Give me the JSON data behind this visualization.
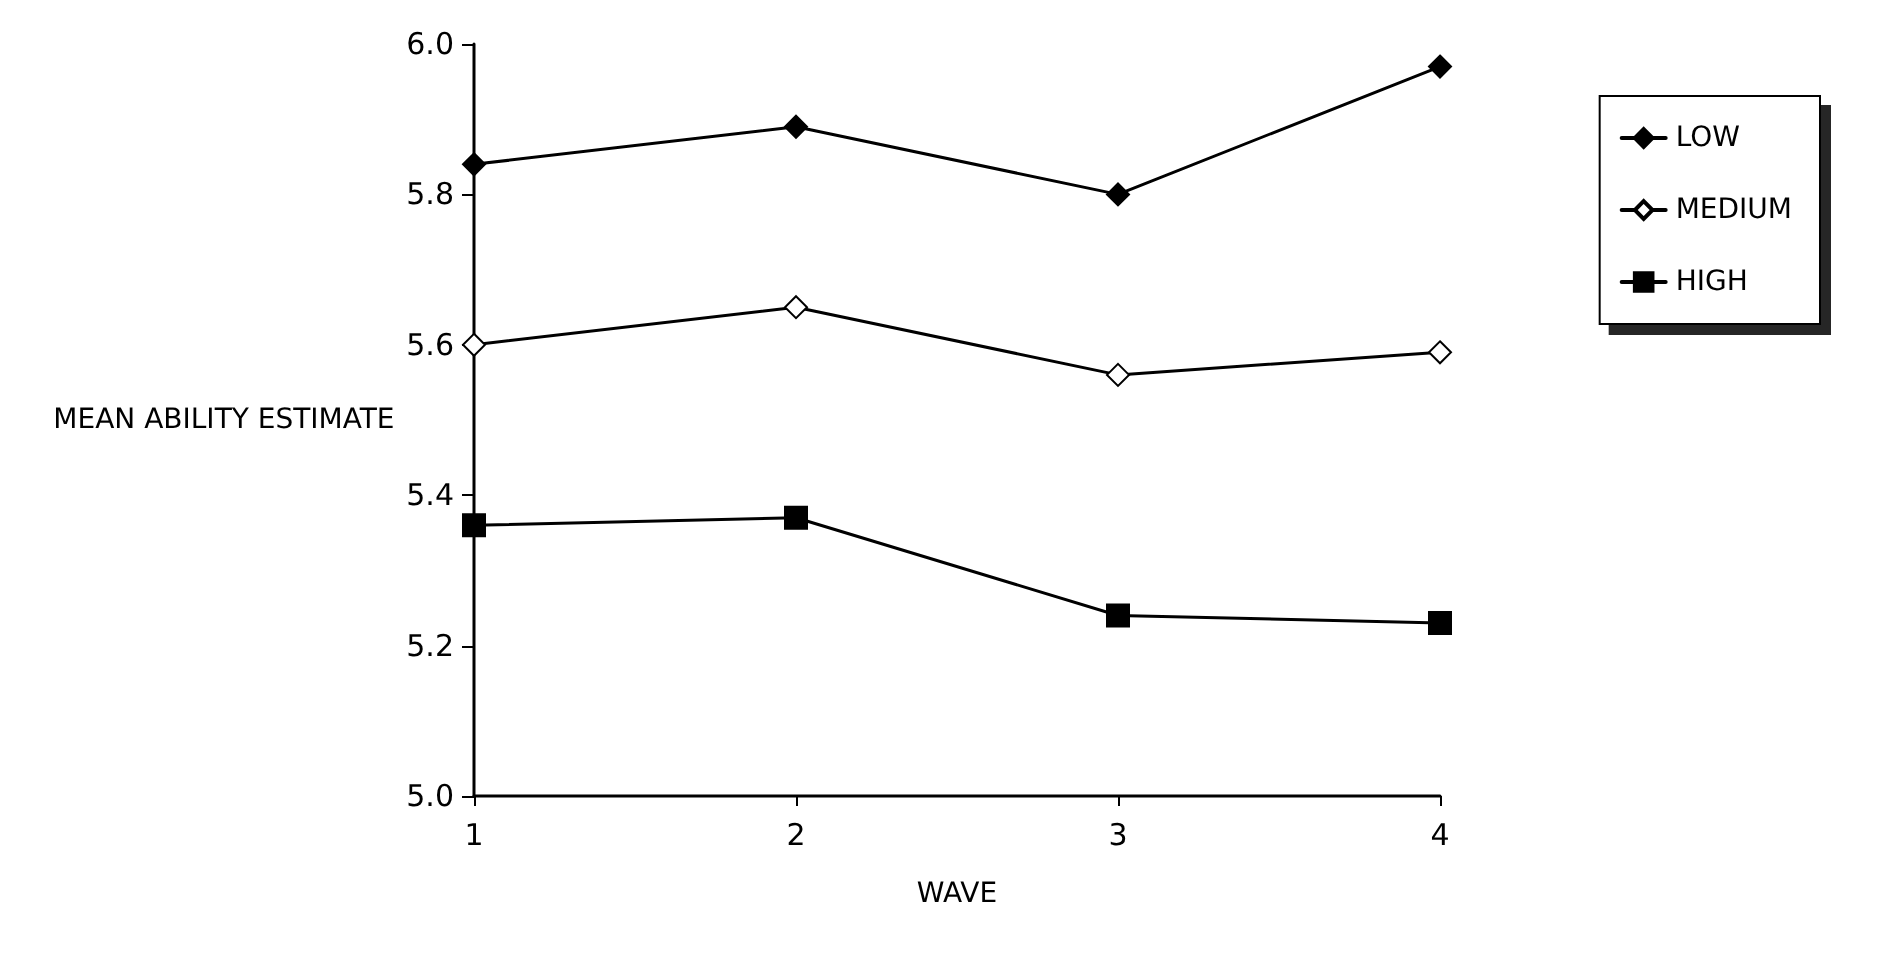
{
  "chart_data": {
    "type": "line",
    "xlabel": "WAVE",
    "ylabel": "MEAN ABILITY ESTIMATE",
    "x": [
      1,
      2,
      3,
      4
    ],
    "series": [
      {
        "name": "LOW",
        "color": "#000000",
        "marker": "diamond",
        "values": [
          5.84,
          5.89,
          5.8,
          5.97
        ]
      },
      {
        "name": "MEDIUM",
        "color": "#000000",
        "marker": "diamond",
        "values": [
          5.6,
          5.65,
          5.56,
          5.59
        ]
      },
      {
        "name": "HIGH",
        "color": "#000000",
        "marker": "square",
        "values": [
          5.36,
          5.37,
          5.24,
          5.23
        ]
      }
    ],
    "xlim": [
      1,
      4
    ],
    "xticks": [
      1,
      2,
      3,
      4
    ],
    "ylim": [
      5.0,
      6.0
    ],
    "yticks": [
      {
        "value": 5,
        "label": "5.0"
      },
      5.2,
      5.4,
      5.6,
      5.8,
      {
        "value": 6,
        "label": "6.0"
      }
    ],
    "grid": false,
    "legend": "top right",
    "line_style": "solid"
  }
}
